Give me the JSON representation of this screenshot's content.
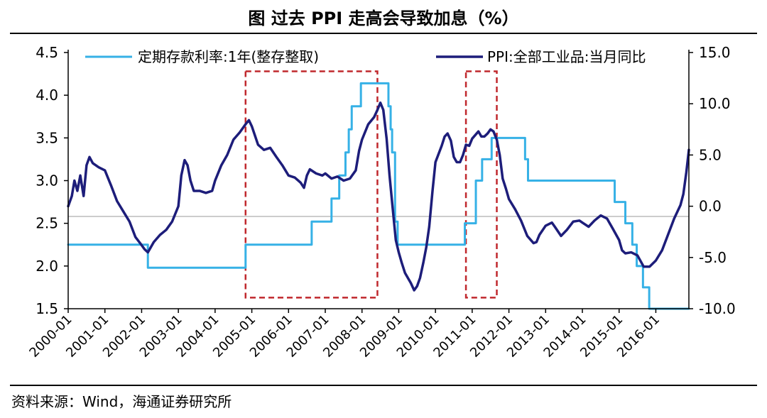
{
  "header": {
    "title": "图 过去 PPI 走高会导致加息（%）"
  },
  "footer": {
    "source": "资料来源：Wind，海通证券研究所"
  },
  "chart_data": {
    "type": "line",
    "title": "图 过去 PPI 走高会导致加息（%）",
    "x_ticks": [
      "2000-01",
      "2001-01",
      "2002-01",
      "2003-01",
      "2004-01",
      "2005-01",
      "2006-01",
      "2007-01",
      "2008-01",
      "2009-01",
      "2010-01",
      "2011-01",
      "2012-01",
      "2013-01",
      "2014-01",
      "2015-01",
      "2016-01"
    ],
    "x_range": [
      2000.0,
      2016.9
    ],
    "y_left": {
      "range": [
        1.5,
        4.5
      ],
      "ticks": [
        "1.5",
        "2.0",
        "2.5",
        "3.0",
        "3.5",
        "4.0",
        "4.5"
      ]
    },
    "y_right": {
      "range": [
        -10,
        15
      ],
      "ticks": [
        "-10.0",
        "-5.0",
        "0.0",
        "5.0",
        "10.0",
        "15.0"
      ]
    },
    "legend_position": "top",
    "grid": false,
    "series": [
      {
        "name": "定期存款利率:1年(整存整取)",
        "axis": "left",
        "color": "#36b1e6",
        "step": true,
        "points": [
          [
            2000.0,
            2.25
          ],
          [
            2002.17,
            1.98
          ],
          [
            2004.83,
            2.25
          ],
          [
            2006.63,
            2.52
          ],
          [
            2007.17,
            2.79
          ],
          [
            2007.38,
            3.06
          ],
          [
            2007.55,
            3.33
          ],
          [
            2007.64,
            3.6
          ],
          [
            2007.72,
            3.87
          ],
          [
            2007.97,
            4.14
          ],
          [
            2008.72,
            3.87
          ],
          [
            2008.78,
            3.6
          ],
          [
            2008.82,
            3.33
          ],
          [
            2008.9,
            2.52
          ],
          [
            2008.97,
            2.25
          ],
          [
            2010.8,
            2.5
          ],
          [
            2011.1,
            3.0
          ],
          [
            2011.27,
            3.25
          ],
          [
            2011.53,
            3.5
          ],
          [
            2012.44,
            3.25
          ],
          [
            2012.52,
            3.0
          ],
          [
            2014.88,
            2.75
          ],
          [
            2015.17,
            2.5
          ],
          [
            2015.36,
            2.25
          ],
          [
            2015.48,
            2.0
          ],
          [
            2015.65,
            1.75
          ],
          [
            2015.82,
            1.5
          ],
          [
            2016.9,
            1.5
          ]
        ]
      },
      {
        "name": "PPI:全部工业品:当月同比",
        "axis": "right",
        "color": "#1d1d7a",
        "step": false,
        "points": [
          [
            2000.0,
            0.0
          ],
          [
            2000.1,
            1.0
          ],
          [
            2000.17,
            2.5
          ],
          [
            2000.25,
            1.5
          ],
          [
            2000.33,
            3.0
          ],
          [
            2000.42,
            1.0
          ],
          [
            2000.5,
            4.0
          ],
          [
            2000.58,
            4.8
          ],
          [
            2000.67,
            4.2
          ],
          [
            2000.83,
            3.8
          ],
          [
            2001.0,
            3.5
          ],
          [
            2001.17,
            2.0
          ],
          [
            2001.33,
            0.5
          ],
          [
            2001.5,
            -0.5
          ],
          [
            2001.67,
            -1.5
          ],
          [
            2001.83,
            -3.0
          ],
          [
            2002.0,
            -3.8
          ],
          [
            2002.08,
            -4.2
          ],
          [
            2002.17,
            -4.5
          ],
          [
            2002.25,
            -4.0
          ],
          [
            2002.33,
            -3.5
          ],
          [
            2002.5,
            -2.8
          ],
          [
            2002.67,
            -2.3
          ],
          [
            2002.83,
            -1.5
          ],
          [
            2003.0,
            0.0
          ],
          [
            2003.08,
            3.0
          ],
          [
            2003.17,
            4.5
          ],
          [
            2003.25,
            4.0
          ],
          [
            2003.33,
            2.5
          ],
          [
            2003.42,
            1.5
          ],
          [
            2003.58,
            1.5
          ],
          [
            2003.75,
            1.3
          ],
          [
            2003.92,
            1.5
          ],
          [
            2004.0,
            2.5
          ],
          [
            2004.17,
            4.0
          ],
          [
            2004.33,
            5.0
          ],
          [
            2004.5,
            6.5
          ],
          [
            2004.67,
            7.2
          ],
          [
            2004.83,
            8.0
          ],
          [
            2004.92,
            8.4
          ],
          [
            2005.0,
            7.8
          ],
          [
            2005.17,
            6.0
          ],
          [
            2005.33,
            5.5
          ],
          [
            2005.5,
            5.7
          ],
          [
            2005.67,
            4.8
          ],
          [
            2005.83,
            4.0
          ],
          [
            2006.0,
            3.0
          ],
          [
            2006.17,
            2.8
          ],
          [
            2006.33,
            2.3
          ],
          [
            2006.42,
            1.8
          ],
          [
            2006.5,
            3.0
          ],
          [
            2006.58,
            3.6
          ],
          [
            2006.75,
            3.2
          ],
          [
            2006.92,
            3.0
          ],
          [
            2007.0,
            3.2
          ],
          [
            2007.17,
            2.7
          ],
          [
            2007.33,
            2.9
          ],
          [
            2007.5,
            2.5
          ],
          [
            2007.67,
            2.7
          ],
          [
            2007.83,
            3.5
          ],
          [
            2007.92,
            5.4
          ],
          [
            2008.0,
            6.5
          ],
          [
            2008.17,
            8.0
          ],
          [
            2008.33,
            8.7
          ],
          [
            2008.42,
            9.4
          ],
          [
            2008.5,
            10.1
          ],
          [
            2008.58,
            9.4
          ],
          [
            2008.67,
            6.6
          ],
          [
            2008.75,
            3.0
          ],
          [
            2008.83,
            0.0
          ],
          [
            2008.92,
            -3.3
          ],
          [
            2009.0,
            -4.5
          ],
          [
            2009.08,
            -5.5
          ],
          [
            2009.17,
            -6.5
          ],
          [
            2009.33,
            -7.5
          ],
          [
            2009.42,
            -8.2
          ],
          [
            2009.5,
            -7.8
          ],
          [
            2009.58,
            -7.0
          ],
          [
            2009.67,
            -5.5
          ],
          [
            2009.75,
            -4.0
          ],
          [
            2009.83,
            -2.0
          ],
          [
            2009.92,
            1.5
          ],
          [
            2010.0,
            4.3
          ],
          [
            2010.17,
            5.9
          ],
          [
            2010.25,
            6.8
          ],
          [
            2010.33,
            7.1
          ],
          [
            2010.42,
            6.4
          ],
          [
            2010.5,
            4.8
          ],
          [
            2010.58,
            4.3
          ],
          [
            2010.67,
            4.3
          ],
          [
            2010.75,
            5.0
          ],
          [
            2010.83,
            6.0
          ],
          [
            2010.92,
            5.9
          ],
          [
            2011.0,
            6.6
          ],
          [
            2011.17,
            7.3
          ],
          [
            2011.25,
            6.8
          ],
          [
            2011.33,
            6.8
          ],
          [
            2011.42,
            7.1
          ],
          [
            2011.5,
            7.5
          ],
          [
            2011.58,
            7.3
          ],
          [
            2011.67,
            6.5
          ],
          [
            2011.75,
            5.0
          ],
          [
            2011.83,
            2.7
          ],
          [
            2011.92,
            1.7
          ],
          [
            2012.0,
            0.7
          ],
          [
            2012.17,
            -0.3
          ],
          [
            2012.33,
            -1.4
          ],
          [
            2012.5,
            -2.9
          ],
          [
            2012.67,
            -3.6
          ],
          [
            2012.75,
            -3.5
          ],
          [
            2012.83,
            -2.8
          ],
          [
            2013.0,
            -1.9
          ],
          [
            2013.17,
            -1.6
          ],
          [
            2013.25,
            -2.0
          ],
          [
            2013.42,
            -2.9
          ],
          [
            2013.58,
            -2.3
          ],
          [
            2013.75,
            -1.5
          ],
          [
            2013.92,
            -1.4
          ],
          [
            2014.0,
            -1.6
          ],
          [
            2014.17,
            -2.0
          ],
          [
            2014.33,
            -1.4
          ],
          [
            2014.5,
            -0.9
          ],
          [
            2014.67,
            -1.2
          ],
          [
            2014.83,
            -2.2
          ],
          [
            2015.0,
            -3.3
          ],
          [
            2015.08,
            -4.3
          ],
          [
            2015.17,
            -4.6
          ],
          [
            2015.33,
            -4.5
          ],
          [
            2015.5,
            -4.8
          ],
          [
            2015.67,
            -5.9
          ],
          [
            2015.83,
            -5.9
          ],
          [
            2016.0,
            -5.3
          ],
          [
            2016.17,
            -4.3
          ],
          [
            2016.33,
            -2.8
          ],
          [
            2016.5,
            -1.2
          ],
          [
            2016.67,
            0.1
          ],
          [
            2016.75,
            1.2
          ],
          [
            2016.83,
            3.3
          ],
          [
            2016.9,
            5.5
          ]
        ]
      }
    ],
    "annotations": [
      {
        "type": "dashed-box",
        "color": "#c0282d",
        "x_range": [
          2004.83,
          2008.42
        ],
        "y_left_range": [
          1.63,
          4.28
        ]
      },
      {
        "type": "dashed-box",
        "color": "#c0282d",
        "x_range": [
          2010.83,
          2011.67
        ],
        "y_left_range": [
          1.63,
          4.28
        ]
      }
    ],
    "reference_line": {
      "axis": "right",
      "value": -1.0,
      "color": "#bbbbbb"
    }
  }
}
